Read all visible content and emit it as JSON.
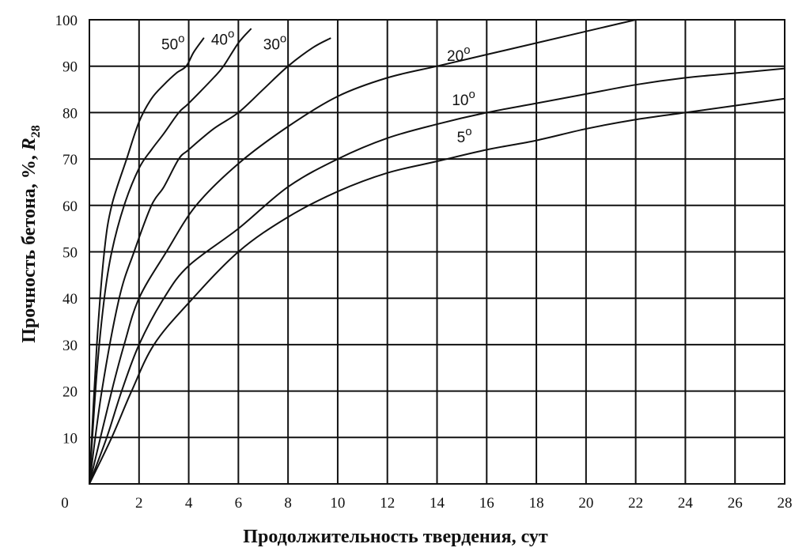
{
  "chart_data": {
    "type": "line",
    "title": "",
    "xlabel": "Продолжительность твердения, сут",
    "ylabel": {
      "prefix": "Прочность бетона, %, ",
      "symbol": "R",
      "subscript": "28"
    },
    "xlim": [
      0,
      28
    ],
    "ylim": [
      0,
      100
    ],
    "grid": true,
    "legend": "inline labels on curves",
    "x_ticks": [
      0,
      2,
      4,
      6,
      8,
      10,
      12,
      14,
      16,
      18,
      20,
      22,
      24,
      26,
      28
    ],
    "x_tick_labels": [
      "0",
      "2",
      "4",
      "6",
      "8",
      "10",
      "12",
      "14",
      "16",
      "18",
      "20",
      "22",
      "24",
      "26",
      "28"
    ],
    "y_ticks": [
      10,
      20,
      30,
      40,
      50,
      60,
      70,
      80,
      90,
      100
    ],
    "y_tick_labels": [
      "10",
      "20",
      "30",
      "40",
      "50",
      "60",
      "70",
      "80",
      "90",
      "100"
    ],
    "series": [
      {
        "name": "50°",
        "label_value": "50",
        "label_unit": "o",
        "label_pos": [
          2.9,
          95
        ],
        "points": [
          [
            0,
            0
          ],
          [
            0.3,
            30
          ],
          [
            0.6,
            50
          ],
          [
            0.9,
            60
          ],
          [
            1.5,
            70
          ],
          [
            2,
            78
          ],
          [
            2.5,
            83
          ],
          [
            3,
            86
          ],
          [
            3.5,
            88.5
          ],
          [
            3.9,
            90
          ],
          [
            4.2,
            93
          ],
          [
            4.6,
            96
          ]
        ]
      },
      {
        "name": "40°",
        "label_value": "40",
        "label_unit": "o",
        "label_pos": [
          4.9,
          96
        ],
        "points": [
          [
            0,
            0
          ],
          [
            0.3,
            24
          ],
          [
            0.6,
            40
          ],
          [
            0.9,
            50
          ],
          [
            1.4,
            60
          ],
          [
            2,
            68
          ],
          [
            2.5,
            72
          ],
          [
            3,
            75.5
          ],
          [
            3.6,
            80
          ],
          [
            4,
            82
          ],
          [
            5,
            87.5
          ],
          [
            5.4,
            90
          ],
          [
            6,
            95
          ],
          [
            6.5,
            98
          ]
        ]
      },
      {
        "name": "30°",
        "label_value": "30",
        "label_unit": "o",
        "label_pos": [
          7.0,
          95
        ],
        "points": [
          [
            0,
            0
          ],
          [
            0.5,
            20
          ],
          [
            1.2,
            40
          ],
          [
            1.8,
            50
          ],
          [
            2.5,
            60
          ],
          [
            3,
            64
          ],
          [
            3.6,
            70
          ],
          [
            4,
            72
          ],
          [
            5,
            76.5
          ],
          [
            6,
            80
          ],
          [
            7,
            85
          ],
          [
            8,
            90
          ],
          [
            9,
            94
          ],
          [
            9.7,
            96
          ]
        ]
      },
      {
        "name": "20°",
        "label_value": "20",
        "label_unit": "o",
        "label_pos": [
          14.4,
          92.5
        ],
        "points": [
          [
            0,
            0
          ],
          [
            0.9,
            20
          ],
          [
            1.4,
            30
          ],
          [
            2,
            40
          ],
          [
            3.1,
            50
          ],
          [
            4.3,
            60
          ],
          [
            6,
            69
          ],
          [
            8,
            77
          ],
          [
            10,
            83.5
          ],
          [
            12,
            87.5
          ],
          [
            14,
            90
          ],
          [
            16,
            92.5
          ],
          [
            18,
            95
          ],
          [
            20,
            97.5
          ],
          [
            22,
            100
          ]
        ]
      },
      {
        "name": "10°",
        "label_value": "10",
        "label_unit": "o",
        "label_pos": [
          14.6,
          83
        ],
        "points": [
          [
            0,
            0
          ],
          [
            0.7,
            10
          ],
          [
            1.3,
            20
          ],
          [
            2,
            30
          ],
          [
            3,
            40
          ],
          [
            4,
            47
          ],
          [
            6,
            55
          ],
          [
            8,
            64
          ],
          [
            10,
            70
          ],
          [
            12,
            74.5
          ],
          [
            14,
            77.5
          ],
          [
            16,
            80
          ],
          [
            18,
            82
          ],
          [
            20,
            84
          ],
          [
            22,
            86
          ],
          [
            24,
            87.5
          ],
          [
            26,
            88.5
          ],
          [
            28,
            89.5
          ]
        ]
      },
      {
        "name": "5°",
        "label_value": "5",
        "label_unit": "o",
        "label_pos": [
          14.8,
          75
        ],
        "points": [
          [
            0,
            0
          ],
          [
            0.9,
            10
          ],
          [
            1.7,
            20
          ],
          [
            2.6,
            30
          ],
          [
            4,
            39
          ],
          [
            6,
            50
          ],
          [
            8,
            57.5
          ],
          [
            10,
            63
          ],
          [
            12,
            67
          ],
          [
            14,
            69.5
          ],
          [
            16,
            72
          ],
          [
            18,
            74
          ],
          [
            20,
            76.5
          ],
          [
            22,
            78.5
          ],
          [
            24,
            80
          ],
          [
            26,
            81.5
          ],
          [
            28,
            83
          ]
        ]
      }
    ]
  },
  "colors": {
    "ink": "#111111",
    "background": "#ffffff"
  }
}
